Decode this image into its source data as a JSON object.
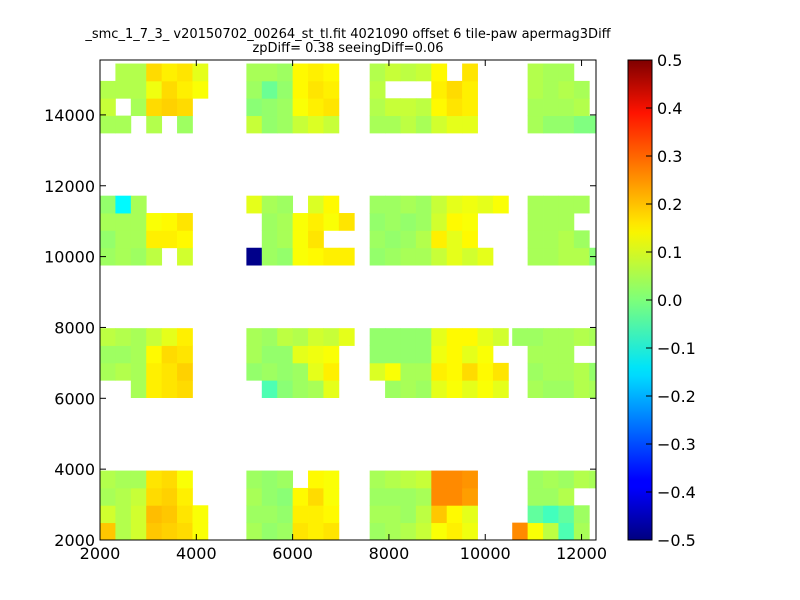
{
  "chart_data": {
    "type": "heatmap",
    "title": "_smc_1_7_3_ v20150702_00264_st_tl.fit 4021090 offset 6 tile-paw apermag3Diff",
    "subtitle": "zpDiff= 0.38 seeingDiff=0.06",
    "xlabel": "",
    "ylabel": "",
    "xlim": [
      2000,
      12300
    ],
    "ylim": [
      2000,
      15550
    ],
    "xticks": [
      "2000",
      "4000",
      "6000",
      "8000",
      "10000",
      "12000"
    ],
    "yticks": [
      "2000",
      "4000",
      "6000",
      "8000",
      "10000",
      "12000",
      "14000"
    ],
    "colorbar": {
      "colormap": "jet",
      "range": [
        -0.5,
        0.5
      ],
      "ticks": [
        "0.5",
        "0.4",
        "0.3",
        "0.2",
        "0.1",
        "0.0",
        "−0.1",
        "−0.2",
        "−0.3",
        "−0.4",
        "−0.5"
      ]
    },
    "grid": false,
    "cell_size": [
      320,
      490
    ],
    "rows_y_start": [
      2000,
      2490,
      2980,
      3470,
      6020,
      6510,
      7000,
      7490,
      9760,
      10250,
      10740,
      11230,
      13490,
      13980,
      14470,
      14960
    ],
    "columns_x_start": [
      2000,
      2320,
      2640,
      2960,
      3280,
      3600,
      3920,
      5040,
      5360,
      5680,
      6000,
      6320,
      6640,
      6960,
      7600,
      7920,
      8240,
      8560,
      8880,
      9200,
      9520,
      9840,
      10160,
      10560,
      10880,
      11200,
      11520,
      11840,
      12160
    ],
    "cells": [
      [
        0.18,
        0.05,
        0.08,
        0.18,
        0.17,
        0.16,
        0.12,
        0.04,
        0.02,
        0.03,
        0.15,
        0.14,
        0.15,
        null,
        0.03,
        0.04,
        0.05,
        0.07,
        0.12,
        0.14,
        0.11,
        null,
        null,
        0.24,
        0.12,
        0.06,
        -0.05,
        0.04,
        null
      ],
      [
        0.08,
        0.05,
        0.08,
        0.19,
        0.18,
        0.15,
        0.12,
        0.03,
        0.03,
        0.02,
        0.14,
        0.14,
        0.13,
        null,
        0.04,
        0.04,
        0.03,
        0.06,
        0.18,
        0.13,
        0.1,
        null,
        null,
        null,
        -0.03,
        -0.06,
        -0.03,
        0.03,
        null
      ],
      [
        0.04,
        0.05,
        0.07,
        0.16,
        0.17,
        0.14,
        null,
        0.04,
        0.02,
        0.01,
        0.13,
        0.16,
        0.12,
        null,
        0.03,
        0.03,
        0.03,
        0.04,
        0.24,
        0.24,
        0.22,
        null,
        null,
        null,
        0.03,
        0.03,
        0.05,
        null,
        null
      ],
      [
        0.05,
        0.04,
        0.04,
        0.15,
        0.16,
        0.12,
        null,
        0.03,
        0.02,
        0.03,
        null,
        0.13,
        0.12,
        null,
        0.04,
        0.05,
        0.06,
        0.07,
        0.24,
        0.24,
        0.23,
        null,
        null,
        null,
        0.03,
        0.04,
        0.03,
        0.05,
        0.04
      ],
      [
        null,
        null,
        0.04,
        0.14,
        0.15,
        0.16,
        null,
        null,
        -0.05,
        0.01,
        0.03,
        0.04,
        0.1,
        null,
        null,
        0.03,
        0.04,
        0.03,
        0.1,
        0.12,
        0.1,
        0.12,
        0.1,
        null,
        0.04,
        0.03,
        0.03,
        0.05,
        0.04
      ],
      [
        0.04,
        0.05,
        0.04,
        0.14,
        0.15,
        0.17,
        null,
        0.02,
        0.03,
        0.02,
        0.03,
        0.1,
        0.14,
        null,
        0.09,
        0.12,
        0.04,
        0.04,
        0.14,
        0.13,
        0.16,
        0.13,
        0.15,
        null,
        0.03,
        0.04,
        0.04,
        0.05,
        0.02
      ],
      [
        0.03,
        0.03,
        0.04,
        0.13,
        0.16,
        0.15,
        null,
        0.04,
        0.02,
        0.02,
        0.1,
        0.11,
        0.12,
        null,
        0.02,
        0.02,
        0.02,
        0.02,
        0.11,
        0.13,
        0.1,
        0.12,
        null,
        null,
        0.04,
        0.04,
        0.04,
        null,
        null
      ],
      [
        0.06,
        0.05,
        0.04,
        0.07,
        0.1,
        0.14,
        null,
        0.04,
        0.03,
        0.06,
        0.05,
        0.08,
        0.07,
        0.1,
        0.02,
        0.02,
        0.02,
        0.02,
        0.1,
        0.13,
        0.13,
        0.1,
        0.08,
        0.03,
        0.03,
        0.04,
        0.04,
        0.05,
        0.04
      ],
      [
        0.03,
        0.04,
        0.03,
        0.06,
        null,
        0.08,
        null,
        -0.49,
        0.03,
        0.02,
        0.12,
        0.13,
        0.14,
        0.14,
        0.02,
        0.03,
        0.04,
        0.04,
        0.07,
        0.1,
        0.08,
        0.1,
        null,
        null,
        0.04,
        0.04,
        0.05,
        0.05,
        0.01
      ],
      [
        0.02,
        0.04,
        0.04,
        0.14,
        0.14,
        0.13,
        null,
        null,
        0.03,
        0.04,
        0.12,
        0.15,
        null,
        null,
        0.03,
        0.02,
        0.03,
        0.05,
        0.14,
        0.1,
        0.13,
        null,
        null,
        null,
        0.04,
        0.04,
        0.05,
        0.03,
        null
      ],
      [
        0.04,
        0.04,
        0.04,
        0.12,
        0.13,
        0.15,
        null,
        null,
        0.03,
        0.04,
        0.12,
        0.14,
        0.12,
        0.15,
        0.02,
        0.03,
        0.02,
        0.03,
        0.08,
        0.13,
        0.12,
        null,
        null,
        null,
        0.04,
        0.04,
        0.04,
        null,
        null
      ],
      [
        0.02,
        -0.13,
        0.04,
        null,
        null,
        null,
        null,
        0.1,
        0.04,
        0.03,
        null,
        0.09,
        0.13,
        null,
        0.03,
        0.03,
        0.04,
        0.03,
        0.07,
        0.1,
        0.11,
        0.1,
        0.12,
        null,
        0.04,
        0.04,
        0.04,
        0.04,
        null
      ],
      [
        0.04,
        0.04,
        null,
        0.05,
        null,
        0.03,
        null,
        0.07,
        0.02,
        0.03,
        0.07,
        0.09,
        0.07,
        null,
        0.04,
        0.04,
        0.06,
        0.04,
        0.08,
        0.1,
        0.1,
        null,
        null,
        null,
        0.04,
        0.02,
        0.02,
        0.0,
        0.0
      ],
      [
        0.07,
        null,
        0.04,
        0.16,
        0.17,
        0.16,
        null,
        0.01,
        0.02,
        0.03,
        0.12,
        0.14,
        0.15,
        null,
        0.05,
        0.07,
        0.07,
        0.06,
        0.13,
        0.15,
        0.14,
        null,
        null,
        null,
        0.04,
        0.04,
        0.04,
        0.05,
        null
      ],
      [
        0.05,
        0.05,
        0.05,
        0.11,
        0.16,
        0.14,
        0.12,
        0.03,
        -0.02,
        0.02,
        0.13,
        0.15,
        0.14,
        null,
        0.06,
        null,
        null,
        null,
        0.14,
        0.16,
        0.14,
        null,
        null,
        null,
        0.05,
        0.04,
        0.05,
        0.04,
        null
      ],
      [
        null,
        0.05,
        0.05,
        0.16,
        0.14,
        0.15,
        0.1,
        0.04,
        0.04,
        0.03,
        0.13,
        0.14,
        0.13,
        null,
        0.05,
        0.07,
        0.06,
        0.07,
        0.13,
        null,
        0.15,
        null,
        null,
        null,
        0.05,
        0.04,
        0.04,
        null,
        null
      ]
    ]
  }
}
